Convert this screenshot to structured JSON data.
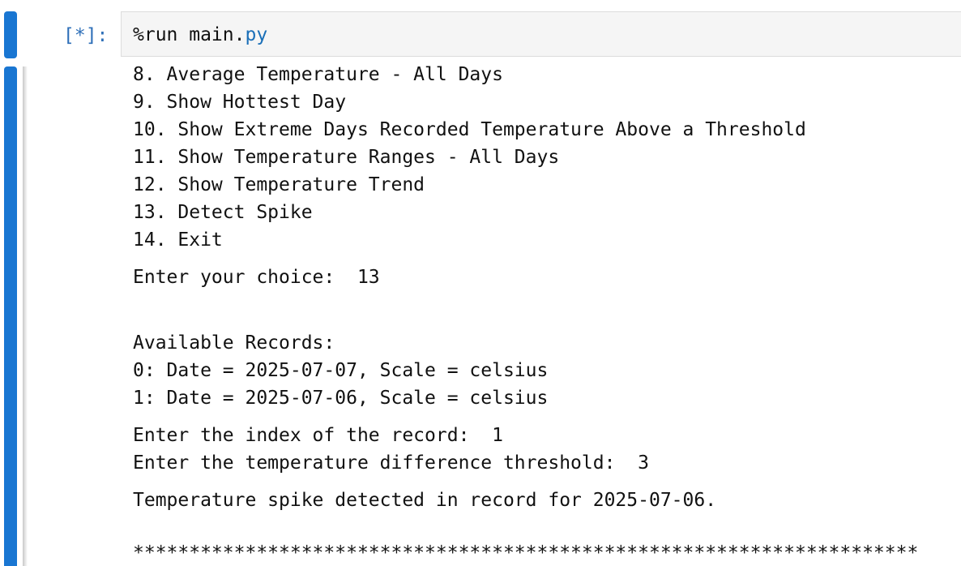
{
  "input_cell": {
    "prompt": "[*]:",
    "code_magic": "%run main.",
    "code_ext": "py"
  },
  "output": {
    "menu_items": [
      "8. Average Temperature - All Days",
      "9. Show Hottest Day",
      "10. Show Extreme Days Recorded Temperature Above a Threshold",
      "11. Show Temperature Ranges - All Days",
      "12. Show Temperature Trend",
      "13. Detect Spike",
      "14. Exit"
    ],
    "choice_prompt": "Enter your choice:  13",
    "records_header": "Available Records:",
    "records": [
      "0: Date = 2025-07-07, Scale = celsius",
      "1: Date = 2025-07-06, Scale = celsius"
    ],
    "index_prompt": "Enter the index of the record:  1",
    "threshold_prompt": "Enter the temperature difference threshold:  3",
    "result": "Temperature spike detected in record for 2025-07-06.",
    "separator": "**********************************************************************"
  }
}
